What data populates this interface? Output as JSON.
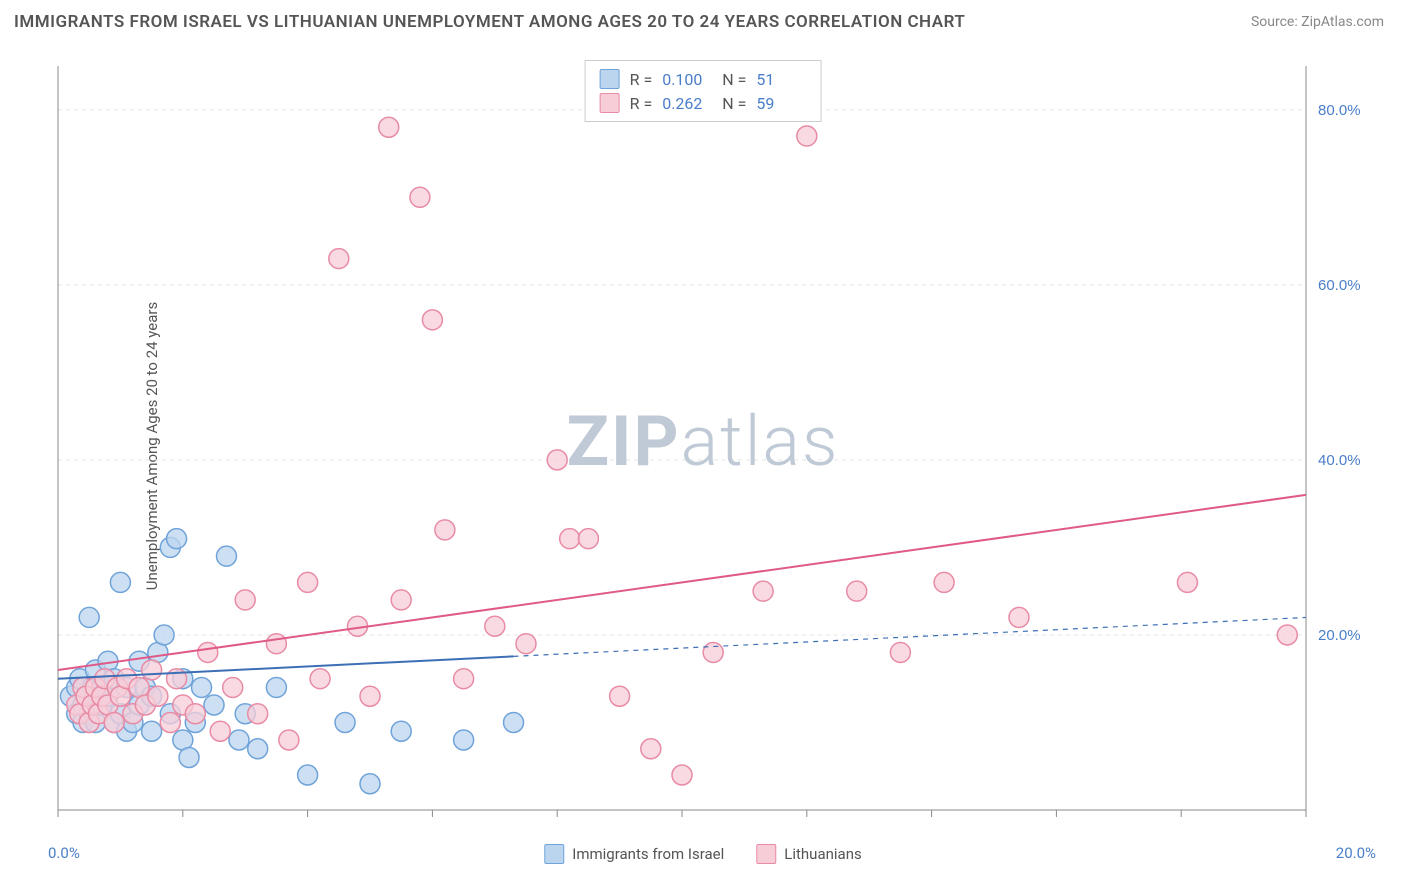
{
  "title": "IMMIGRANTS FROM ISRAEL VS LITHUANIAN UNEMPLOYMENT AMONG AGES 20 TO 24 YEARS CORRELATION CHART",
  "source": "Source: ZipAtlas.com",
  "ylabel": "Unemployment Among Ages 20 to 24 years",
  "watermark_a": "ZIP",
  "watermark_b": "atlas",
  "chart": {
    "type": "scatter",
    "xlim": [
      0,
      20
    ],
    "ylim": [
      0,
      85
    ],
    "ytick_values": [
      0,
      20,
      40,
      60,
      80
    ],
    "ytick_labels": [
      "0.0%",
      "20.0%",
      "40.0%",
      "60.0%",
      "80.0%"
    ],
    "xtick_minor": [
      0,
      2,
      4,
      6,
      8,
      10,
      12,
      14,
      16,
      18,
      20
    ],
    "xtick_labels": [
      "0.0%",
      "20.0%"
    ],
    "grid_color": "#e5e5e5",
    "axis_color": "#888888",
    "background_color": "#ffffff",
    "marker_radius": 10,
    "marker_stroke_width": 1.5,
    "series": [
      {
        "name": "Immigrants from Israel",
        "fill": "#bcd5ef",
        "stroke": "#6fa3d9",
        "r_label": "R =",
        "r_value": "0.100",
        "n_label": "N =",
        "n_value": "51",
        "trend": {
          "y_at_x0": 15,
          "y_at_x20": 22,
          "solid_until_x": 7.3,
          "color": "#3d6fb5",
          "width": 2
        },
        "points": [
          [
            0.2,
            13
          ],
          [
            0.3,
            11
          ],
          [
            0.3,
            14
          ],
          [
            0.35,
            15
          ],
          [
            0.4,
            10
          ],
          [
            0.4,
            12
          ],
          [
            0.45,
            13
          ],
          [
            0.5,
            11
          ],
          [
            0.5,
            22
          ],
          [
            0.55,
            14
          ],
          [
            0.6,
            10
          ],
          [
            0.6,
            16
          ],
          [
            0.65,
            13
          ],
          [
            0.7,
            14
          ],
          [
            0.7,
            12
          ],
          [
            0.8,
            13
          ],
          [
            0.8,
            17
          ],
          [
            0.9,
            10
          ],
          [
            0.9,
            15
          ],
          [
            1.0,
            26
          ],
          [
            1.0,
            11
          ],
          [
            1.1,
            14
          ],
          [
            1.1,
            9
          ],
          [
            1.2,
            10
          ],
          [
            1.3,
            12
          ],
          [
            1.3,
            17
          ],
          [
            1.4,
            14
          ],
          [
            1.5,
            9
          ],
          [
            1.5,
            13
          ],
          [
            1.6,
            18
          ],
          [
            1.7,
            20
          ],
          [
            1.8,
            11
          ],
          [
            1.8,
            30
          ],
          [
            1.9,
            31
          ],
          [
            2.0,
            8
          ],
          [
            2.0,
            15
          ],
          [
            2.1,
            6
          ],
          [
            2.2,
            10
          ],
          [
            2.3,
            14
          ],
          [
            2.5,
            12
          ],
          [
            2.7,
            29
          ],
          [
            2.9,
            8
          ],
          [
            3.0,
            11
          ],
          [
            3.2,
            7
          ],
          [
            3.5,
            14
          ],
          [
            4.0,
            4
          ],
          [
            4.6,
            10
          ],
          [
            5.0,
            3
          ],
          [
            5.5,
            9
          ],
          [
            6.5,
            8
          ],
          [
            7.3,
            10
          ]
        ]
      },
      {
        "name": "Lithuanians",
        "fill": "#f7cdd8",
        "stroke": "#e88ba5",
        "r_label": "R =",
        "r_value": "0.262",
        "n_label": "N =",
        "n_value": "59",
        "trend": {
          "y_at_x0": 16,
          "y_at_x20": 36,
          "solid_until_x": 20,
          "color": "#e05a87",
          "width": 2
        },
        "points": [
          [
            0.3,
            12
          ],
          [
            0.35,
            11
          ],
          [
            0.4,
            14
          ],
          [
            0.45,
            13
          ],
          [
            0.5,
            10
          ],
          [
            0.55,
            12
          ],
          [
            0.6,
            14
          ],
          [
            0.65,
            11
          ],
          [
            0.7,
            13
          ],
          [
            0.75,
            15
          ],
          [
            0.8,
            12
          ],
          [
            0.9,
            10
          ],
          [
            0.95,
            14
          ],
          [
            1.0,
            13
          ],
          [
            1.1,
            15
          ],
          [
            1.2,
            11
          ],
          [
            1.3,
            14
          ],
          [
            1.4,
            12
          ],
          [
            1.5,
            16
          ],
          [
            1.6,
            13
          ],
          [
            1.8,
            10
          ],
          [
            1.9,
            15
          ],
          [
            2.0,
            12
          ],
          [
            2.2,
            11
          ],
          [
            2.4,
            18
          ],
          [
            2.6,
            9
          ],
          [
            2.8,
            14
          ],
          [
            3.0,
            24
          ],
          [
            3.2,
            11
          ],
          [
            3.5,
            19
          ],
          [
            3.7,
            8
          ],
          [
            4.0,
            26
          ],
          [
            4.2,
            15
          ],
          [
            4.5,
            63
          ],
          [
            4.8,
            21
          ],
          [
            5.0,
            13
          ],
          [
            5.3,
            78
          ],
          [
            5.5,
            24
          ],
          [
            5.8,
            70
          ],
          [
            6.0,
            56
          ],
          [
            6.2,
            32
          ],
          [
            6.5,
            15
          ],
          [
            7.0,
            21
          ],
          [
            7.5,
            19
          ],
          [
            8.0,
            40
          ],
          [
            8.2,
            31
          ],
          [
            8.5,
            31
          ],
          [
            9.0,
            13
          ],
          [
            9.5,
            7
          ],
          [
            10.0,
            4
          ],
          [
            10.5,
            18
          ],
          [
            11.3,
            25
          ],
          [
            12.0,
            77
          ],
          [
            12.8,
            25
          ],
          [
            13.5,
            18
          ],
          [
            14.2,
            26
          ],
          [
            15.4,
            22
          ],
          [
            18.1,
            26
          ],
          [
            19.7,
            20
          ]
        ]
      }
    ]
  },
  "legend": {
    "items": [
      {
        "label": "Immigrants from Israel",
        "fill": "#bcd5ef",
        "stroke": "#6fa3d9"
      },
      {
        "label": "Lithuanians",
        "fill": "#f7cdd8",
        "stroke": "#e88ba5"
      }
    ]
  }
}
